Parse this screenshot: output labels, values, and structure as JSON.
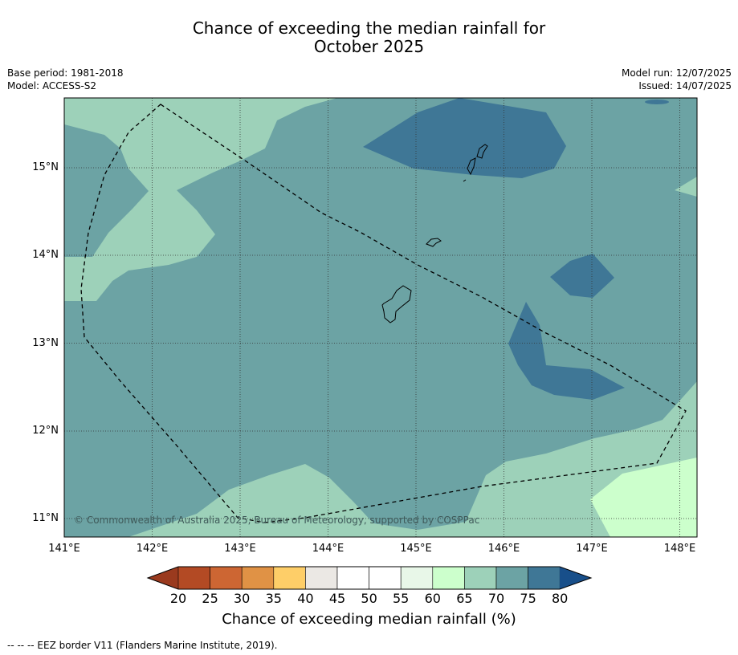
{
  "header": {
    "title_line1": "Chance of exceeding the median rainfall for",
    "title_line2": "October 2025",
    "base_period": "Base period: 1981-2018",
    "model": "Model: ACCESS-S2",
    "model_run": "Model run: 12/07/2025",
    "issued": "Issued: 14/07/2025"
  },
  "map": {
    "lon_labels": [
      "141°E",
      "142°E",
      "143°E",
      "144°E",
      "145°E",
      "146°E",
      "147°E",
      "148°E"
    ],
    "lat_labels": [
      "15°N",
      "14°N",
      "13°N",
      "12°N",
      "11°N"
    ],
    "copyright": "© Commonwealth of Australia 2025, Bureau of Meteorology, supported by COSPPac",
    "colors": {
      "c60_65": "#ccffcc",
      "c65_70": "#9dd1b9",
      "c70_75": "#6ca3a4",
      "c75_80": "#3f7796",
      "coast": "#000000",
      "eez": "#000000"
    }
  },
  "colorbar": {
    "ticks": [
      "20",
      "25",
      "30",
      "35",
      "40",
      "45",
      "50",
      "55",
      "60",
      "65",
      "70",
      "75",
      "80"
    ],
    "colors": [
      "#b34a24",
      "#cd6633",
      "#e09245",
      "#fece68",
      "#ebe8e4",
      "#ffffff",
      "#ffffff",
      "#e8f7e8",
      "#ccffcc",
      "#9dd1b9",
      "#6ca3a4",
      "#3f7796"
    ],
    "under_color": "#9a3a1e",
    "over_color": "#184f8a",
    "label": "Chance of exceeding median rainfall (%)"
  },
  "footnote": "--  --  -- EEZ border V11 (Flanders Marine Institute, 2019)."
}
